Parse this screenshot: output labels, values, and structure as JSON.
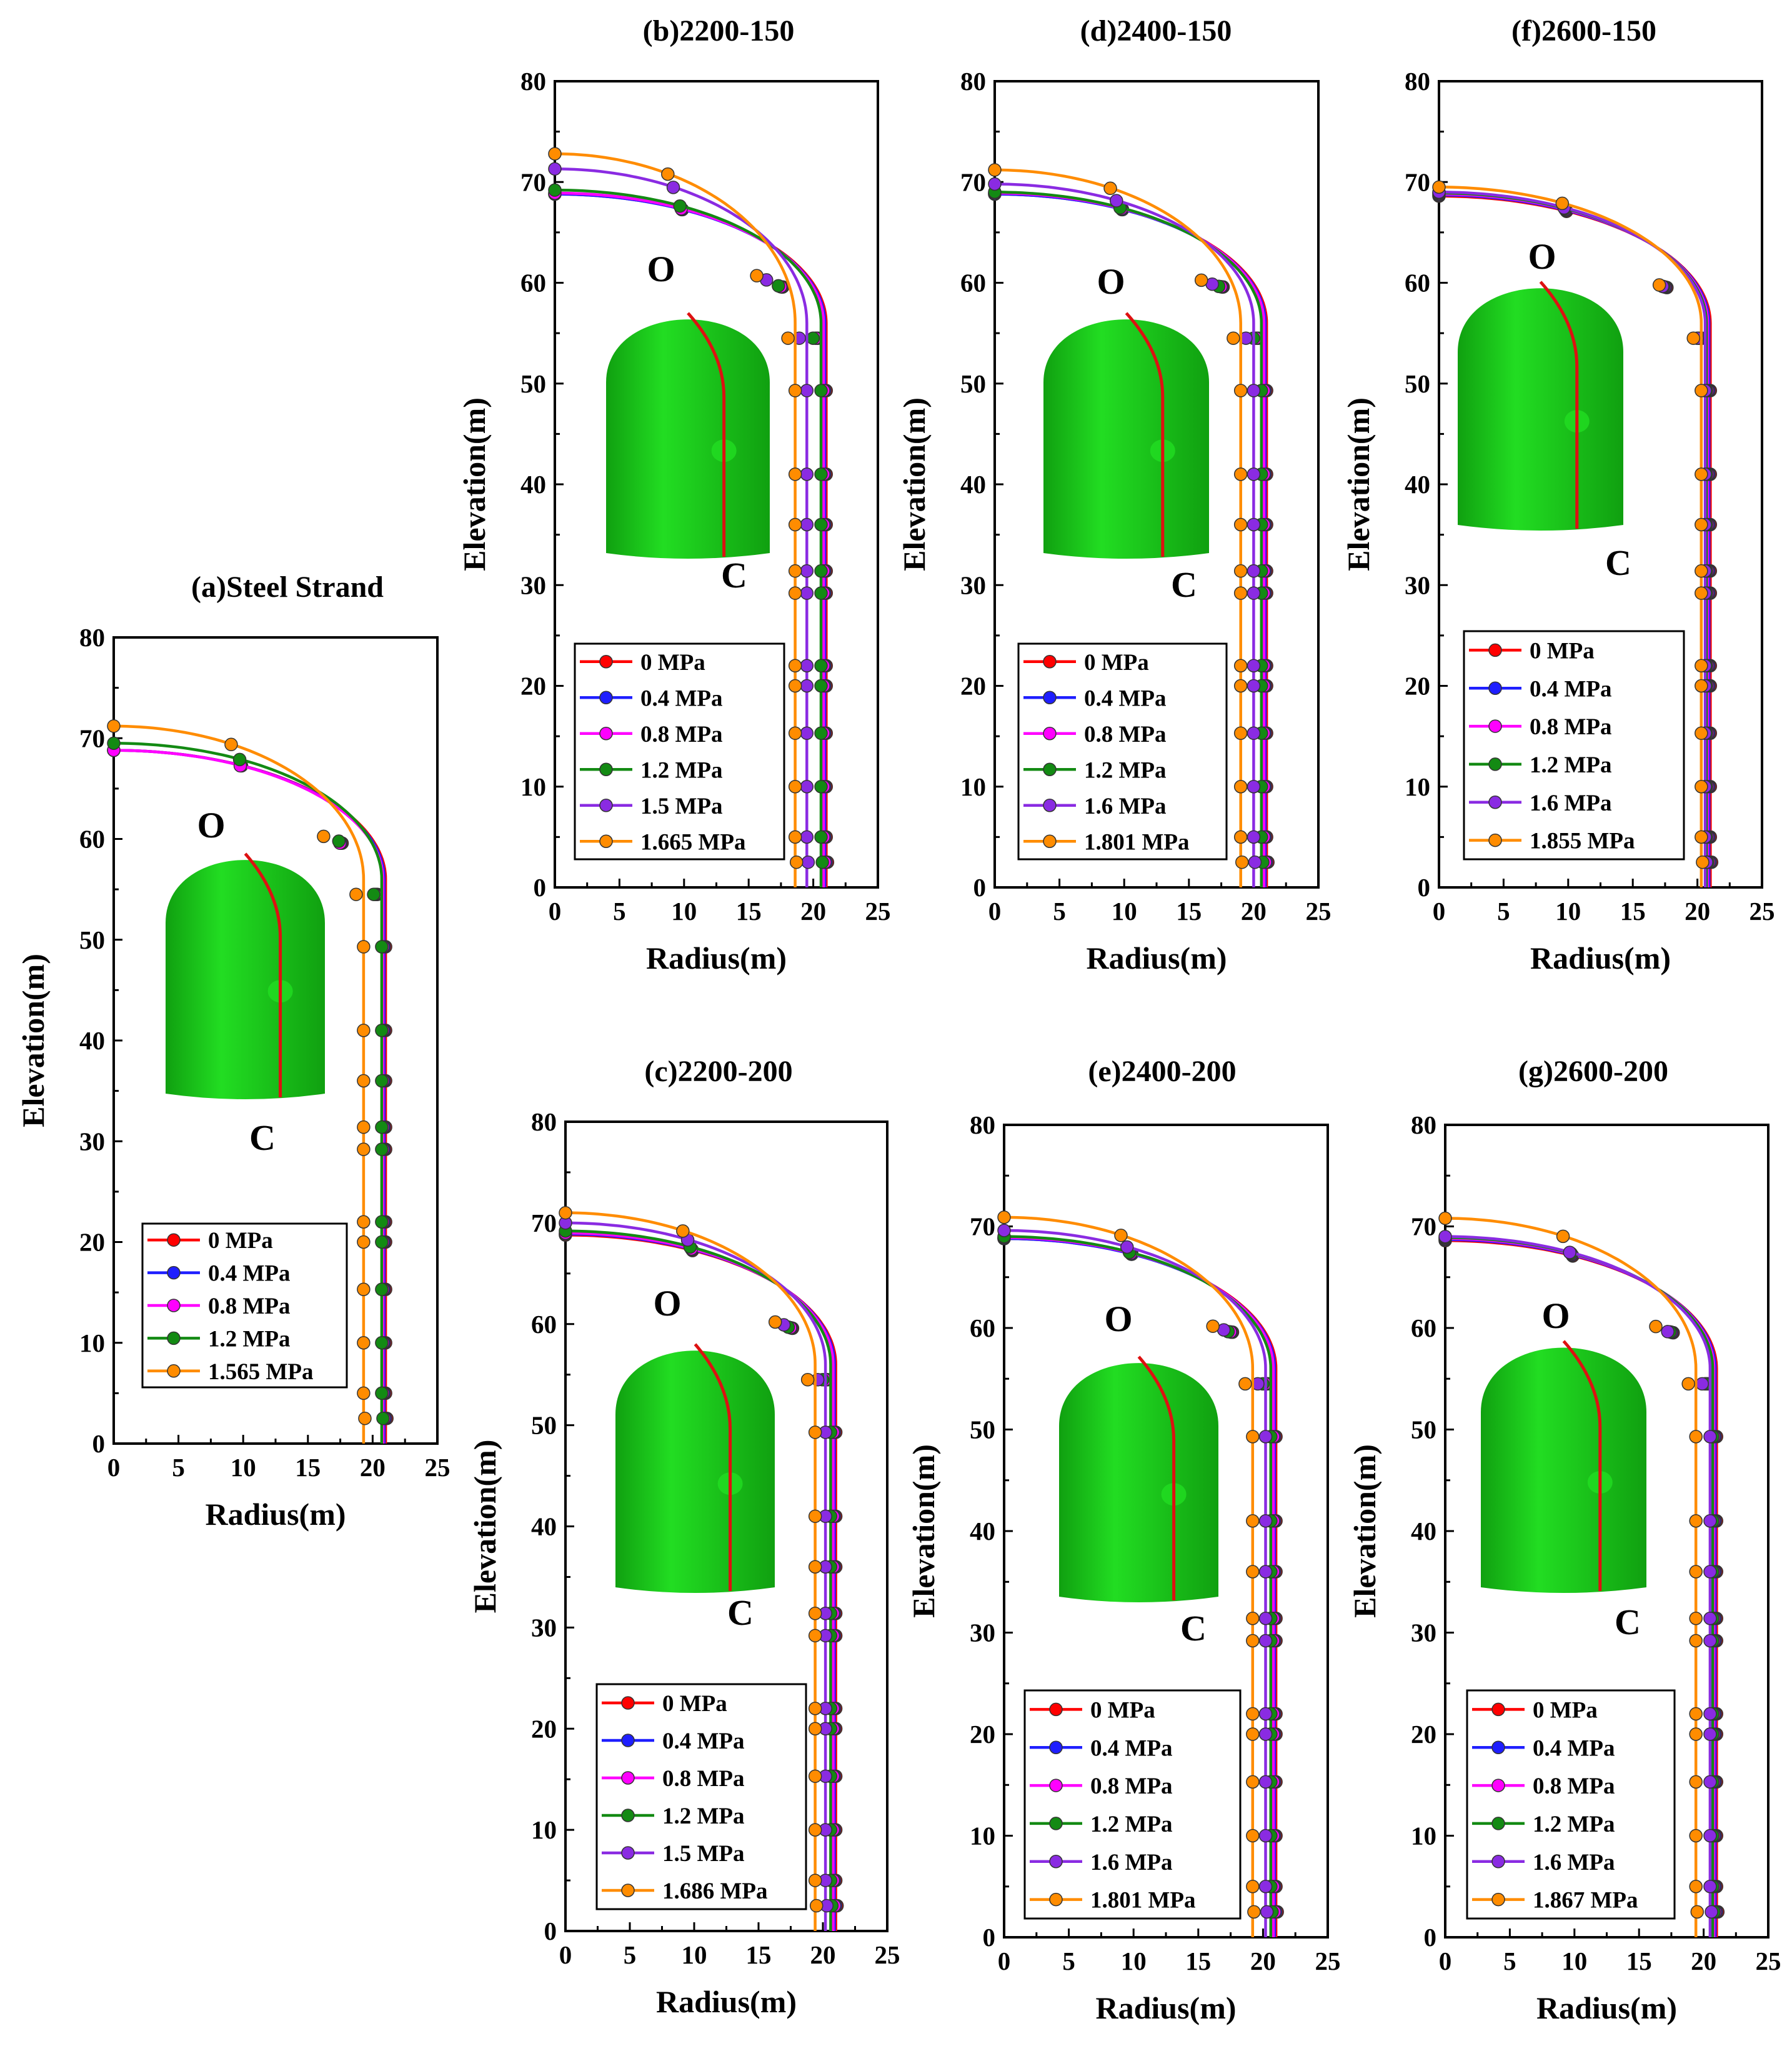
{
  "figure": {
    "colors": {
      "0 MPa": "#ff0000",
      "0.4 MPa": "#1e1eff",
      "0.8 MPa": "#ff00ff",
      "1.2 MPa": "#138a13",
      "1.5 MPa": "#8a2be2",
      "1.6 MPa": "#8a2be2",
      "final": "#ff8c00",
      "dome": "#22dd22",
      "dome_dark": "#10a010",
      "meridian": "#dd1111"
    },
    "icon": "green-tank-dome-icon"
  },
  "chart_data": [
    {
      "id": "a",
      "type": "line",
      "title": "(a)Steel Strand",
      "xlabel": "Radius(m)",
      "ylabel": "Elevation(m)",
      "xlim": [
        0,
        25
      ],
      "ylim": [
        0,
        80
      ],
      "xticks": [
        "0",
        "5",
        "10",
        "15",
        "20",
        "25"
      ],
      "yticks": [
        "0",
        "10",
        "20",
        "30",
        "40",
        "50",
        "60",
        "70",
        "80"
      ],
      "annotations": {
        "top": "O",
        "bottom": "C"
      },
      "series": [
        {
          "name": "0 MPa",
          "apex": 68.8,
          "wall": 21.0,
          "markers": [
            10,
            15.3,
            20,
            22,
            29.2,
            31.4,
            36,
            41,
            49.3
          ]
        },
        {
          "name": "0.4 MPa",
          "apex": 68.8,
          "wall": 20.9,
          "markers": [
            10,
            15.3,
            20,
            22,
            29.2,
            31.4,
            36,
            41,
            49.3
          ]
        },
        {
          "name": "0.8 MPa",
          "apex": 68.8,
          "wall": 20.8,
          "markers": [
            10,
            15.3,
            20,
            22,
            29.2,
            31.4,
            36,
            41,
            49.3
          ]
        },
        {
          "name": "1.2 MPa",
          "apex": 69.5,
          "wall": 20.7,
          "markers": [
            10,
            15.3,
            20,
            22,
            29.2,
            31.4,
            36,
            41,
            49.3
          ]
        },
        {
          "name": "1.565 MPa",
          "apex": 71.2,
          "wall": 19.3,
          "markers": [
            10,
            15.3,
            20,
            22,
            29.2,
            31.4,
            36,
            41,
            49.3
          ]
        }
      ]
    },
    {
      "id": "b",
      "type": "line",
      "title": "(b)2200-150",
      "xlabel": "Radius(m)",
      "ylabel": "Elevation(m)",
      "xlim": [
        0,
        25
      ],
      "ylim": [
        0,
        80
      ],
      "xticks": [
        "0",
        "5",
        "10",
        "15",
        "20",
        "25"
      ],
      "yticks": [
        "0",
        "10",
        "20",
        "30",
        "40",
        "50",
        "60",
        "70",
        "80"
      ],
      "annotations": {
        "top": "O",
        "bottom": "C"
      },
      "series": [
        {
          "name": "0 MPa",
          "apex": 68.8,
          "wall": 21.0,
          "markers": [
            10,
            15.3,
            20,
            22,
            29.2,
            31.4,
            36,
            41,
            49.3
          ]
        },
        {
          "name": "0.4 MPa",
          "apex": 68.8,
          "wall": 20.9,
          "markers": [
            10,
            15.3,
            20,
            22,
            29.2,
            31.4,
            36,
            41,
            49.3
          ]
        },
        {
          "name": "0.8 MPa",
          "apex": 68.9,
          "wall": 20.8,
          "markers": [
            10,
            15.3,
            20,
            22,
            29.2,
            31.4,
            36,
            41,
            49.3
          ]
        },
        {
          "name": "1.2 MPa",
          "apex": 69.2,
          "wall": 20.6,
          "markers": [
            10,
            15.3,
            20,
            22,
            29.2,
            31.4,
            36,
            41,
            49.3
          ]
        },
        {
          "name": "1.5 MPa",
          "apex": 71.3,
          "wall": 19.5,
          "markers": [
            10,
            15.3,
            20,
            22,
            29.2,
            31.4,
            36,
            41,
            49.3
          ]
        },
        {
          "name": "1.665 MPa",
          "apex": 72.8,
          "wall": 18.6,
          "markers": [
            10,
            15.3,
            20,
            22,
            29.2,
            31.4,
            36,
            41,
            49.3
          ]
        }
      ]
    },
    {
      "id": "c",
      "type": "line",
      "title": "(c)2200-200",
      "xlabel": "Radius(m)",
      "ylabel": "Elevation(m)",
      "xlim": [
        0,
        25
      ],
      "ylim": [
        0,
        80
      ],
      "xticks": [
        "0",
        "5",
        "10",
        "15",
        "20",
        "25"
      ],
      "yticks": [
        "0",
        "10",
        "20",
        "30",
        "40",
        "50",
        "60",
        "70",
        "80"
      ],
      "annotations": {
        "top": "O",
        "bottom": "C"
      },
      "series": [
        {
          "name": "0 MPa",
          "apex": 68.8,
          "wall": 21.0,
          "markers": [
            10,
            15.3,
            20,
            22,
            29.2,
            31.4,
            36,
            41,
            49.3
          ]
        },
        {
          "name": "0.4 MPa",
          "apex": 68.9,
          "wall": 20.9,
          "markers": [
            10,
            15.3,
            20,
            22,
            29.2,
            31.4,
            36,
            41,
            49.3
          ]
        },
        {
          "name": "0.8 MPa",
          "apex": 69.0,
          "wall": 20.8,
          "markers": [
            10,
            15.3,
            20,
            22,
            29.2,
            31.4,
            36,
            41,
            49.3
          ]
        },
        {
          "name": "1.2 MPa",
          "apex": 69.2,
          "wall": 20.6,
          "markers": [
            10,
            15.3,
            20,
            22,
            29.2,
            31.4,
            36,
            41,
            49.3
          ]
        },
        {
          "name": "1.5 MPa",
          "apex": 70.0,
          "wall": 20.2,
          "markers": [
            10,
            15.3,
            20,
            22,
            29.2,
            31.4,
            36,
            41,
            49.3
          ]
        },
        {
          "name": "1.686 MPa",
          "apex": 71.0,
          "wall": 19.4,
          "markers": [
            10,
            15.3,
            20,
            22,
            29.2,
            31.4,
            36,
            41,
            49.3
          ]
        }
      ]
    },
    {
      "id": "d",
      "type": "line",
      "title": "(d)2400-150",
      "xlabel": "Radius(m)",
      "ylabel": "Elevation(m)",
      "xlim": [
        0,
        25
      ],
      "ylim": [
        0,
        80
      ],
      "xticks": [
        "0",
        "5",
        "10",
        "15",
        "20",
        "25"
      ],
      "yticks": [
        "0",
        "10",
        "20",
        "30",
        "40",
        "50",
        "60",
        "70",
        "80"
      ],
      "annotations": {
        "top": "O",
        "bottom": "C"
      },
      "series": [
        {
          "name": "0 MPa",
          "apex": 68.8,
          "wall": 21.0,
          "markers": [
            10,
            15.3,
            20,
            22,
            29.2,
            31.4,
            36,
            41,
            49.3
          ]
        },
        {
          "name": "0.4 MPa",
          "apex": 68.8,
          "wall": 20.9,
          "markers": [
            10,
            15.3,
            20,
            22,
            29.2,
            31.4,
            36,
            41,
            49.3
          ]
        },
        {
          "name": "0.8 MPa",
          "apex": 68.9,
          "wall": 20.8,
          "markers": [
            10,
            15.3,
            20,
            22,
            29.2,
            31.4,
            36,
            41,
            49.3
          ]
        },
        {
          "name": "1.2 MPa",
          "apex": 69.0,
          "wall": 20.6,
          "markers": [
            10,
            15.3,
            20,
            22,
            29.2,
            31.4,
            36,
            41,
            49.3
          ]
        },
        {
          "name": "1.6 MPa",
          "apex": 69.8,
          "wall": 20.0,
          "markers": [
            10,
            15.3,
            20,
            22,
            29.2,
            31.4,
            36,
            41,
            49.3
          ]
        },
        {
          "name": "1.801 MPa",
          "apex": 71.2,
          "wall": 19.0,
          "markers": [
            10,
            15.3,
            20,
            22,
            29.2,
            31.4,
            36,
            41,
            49.3
          ]
        }
      ]
    },
    {
      "id": "e",
      "type": "line",
      "title": "(e)2400-200",
      "xlabel": "Radius(m)",
      "ylabel": "Elevation(m)",
      "xlim": [
        0,
        25
      ],
      "ylim": [
        0,
        80
      ],
      "xticks": [
        "0",
        "5",
        "10",
        "15",
        "20",
        "25"
      ],
      "yticks": [
        "0",
        "10",
        "20",
        "30",
        "40",
        "50",
        "60",
        "70",
        "80"
      ],
      "annotations": {
        "top": "O",
        "bottom": "C"
      },
      "series": [
        {
          "name": "0 MPa",
          "apex": 68.8,
          "wall": 21.0,
          "markers": [
            10,
            15.3,
            20,
            22,
            29.2,
            31.4,
            36,
            41,
            49.3
          ]
        },
        {
          "name": "0.4 MPa",
          "apex": 68.8,
          "wall": 20.9,
          "markers": [
            10,
            15.3,
            20,
            22,
            29.2,
            31.4,
            36,
            41,
            49.3
          ]
        },
        {
          "name": "0.8 MPa",
          "apex": 68.9,
          "wall": 20.8,
          "markers": [
            10,
            15.3,
            20,
            22,
            29.2,
            31.4,
            36,
            41,
            49.3
          ]
        },
        {
          "name": "1.2 MPa",
          "apex": 69.0,
          "wall": 20.6,
          "markers": [
            10,
            15.3,
            20,
            22,
            29.2,
            31.4,
            36,
            41,
            49.3
          ]
        },
        {
          "name": "1.6 MPa",
          "apex": 69.6,
          "wall": 20.2,
          "markers": [
            10,
            15.3,
            20,
            22,
            29.2,
            31.4,
            36,
            41,
            49.3
          ]
        },
        {
          "name": "1.801 MPa",
          "apex": 70.9,
          "wall": 19.2,
          "markers": [
            10,
            15.3,
            20,
            22,
            29.2,
            31.4,
            36,
            41,
            49.3
          ]
        }
      ]
    },
    {
      "id": "f",
      "type": "line",
      "title": "(f)2600-150",
      "xlabel": "Radius(m)",
      "ylabel": "Elevation(m)",
      "xlim": [
        0,
        25
      ],
      "ylim": [
        0,
        80
      ],
      "xticks": [
        "0",
        "5",
        "10",
        "15",
        "20",
        "25"
      ],
      "yticks": [
        "0",
        "10",
        "20",
        "30",
        "40",
        "50",
        "60",
        "70",
        "80"
      ],
      "annotations": {
        "top": "O",
        "bottom": "C"
      },
      "series": [
        {
          "name": "0 MPa",
          "apex": 68.6,
          "wall": 21.0,
          "markers": [
            10,
            15.3,
            20,
            22,
            29.2,
            31.4,
            36,
            41,
            49.3
          ]
        },
        {
          "name": "0.4 MPa",
          "apex": 68.7,
          "wall": 20.9,
          "markers": [
            10,
            15.3,
            20,
            22,
            29.2,
            31.4,
            36,
            41,
            49.3
          ]
        },
        {
          "name": "0.8 MPa",
          "apex": 68.8,
          "wall": 20.8,
          "markers": [
            10,
            15.3,
            20,
            22,
            29.2,
            31.4,
            36,
            41,
            49.3
          ]
        },
        {
          "name": "1.2 MPa",
          "apex": 68.9,
          "wall": 20.7,
          "markers": [
            10,
            15.3,
            20,
            22,
            29.2,
            31.4,
            36,
            41,
            49.3
          ]
        },
        {
          "name": "1.6 MPa",
          "apex": 69.0,
          "wall": 20.6,
          "markers": [
            10,
            15.3,
            20,
            22,
            29.2,
            31.4,
            36,
            41,
            49.3
          ]
        },
        {
          "name": "1.855 MPa",
          "apex": 69.5,
          "wall": 20.3,
          "markers": [
            10,
            15.3,
            20,
            22,
            29.2,
            31.4,
            36,
            41,
            49.3
          ]
        }
      ]
    },
    {
      "id": "g",
      "type": "line",
      "title": "(g)2600-200",
      "xlabel": "Radius(m)",
      "ylabel": "Elevation(m)",
      "xlim": [
        0,
        25
      ],
      "ylim": [
        0,
        80
      ],
      "xticks": [
        "0",
        "5",
        "10",
        "15",
        "20",
        "25"
      ],
      "yticks": [
        "0",
        "10",
        "20",
        "30",
        "40",
        "50",
        "60",
        "70",
        "80"
      ],
      "annotations": {
        "top": "O",
        "bottom": "C"
      },
      "series": [
        {
          "name": "0 MPa",
          "apex": 68.6,
          "wall": 21.0,
          "markers": [
            10,
            15.3,
            20,
            22,
            29.2,
            31.4,
            36,
            41,
            49.3
          ]
        },
        {
          "name": "0.4 MPa",
          "apex": 68.7,
          "wall": 20.9,
          "markers": [
            10,
            15.3,
            20,
            22,
            29.2,
            31.4,
            36,
            41,
            49.3
          ]
        },
        {
          "name": "0.8 MPa",
          "apex": 68.8,
          "wall": 20.8,
          "markers": [
            10,
            15.3,
            20,
            22,
            29.2,
            31.4,
            36,
            41,
            49.3
          ]
        },
        {
          "name": "1.2 MPa",
          "apex": 68.9,
          "wall": 20.7,
          "markers": [
            10,
            15.3,
            20,
            22,
            29.2,
            31.4,
            36,
            41,
            49.3
          ]
        },
        {
          "name": "1.6 MPa",
          "apex": 69.0,
          "wall": 20.5,
          "markers": [
            10,
            15.3,
            20,
            22,
            29.2,
            31.4,
            36,
            41,
            49.3
          ]
        },
        {
          "name": "1.867 MPa",
          "apex": 70.8,
          "wall": 19.4,
          "markers": [
            10,
            15.3,
            20,
            22,
            29.2,
            31.4,
            36,
            41,
            49.3
          ]
        }
      ]
    }
  ]
}
